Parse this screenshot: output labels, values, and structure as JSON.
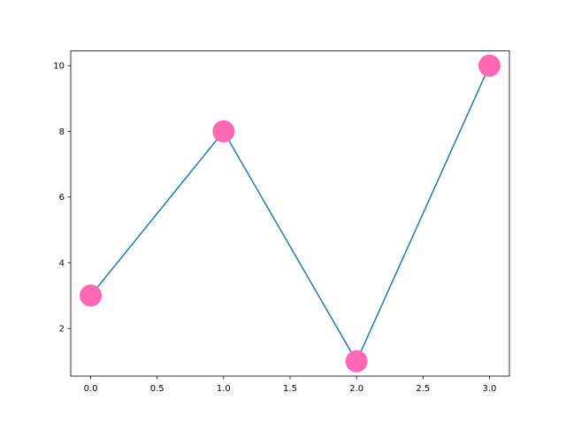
{
  "chart_data": {
    "type": "line",
    "title": "",
    "xlabel": "",
    "ylabel": "",
    "x": [
      0,
      1,
      2,
      3
    ],
    "series": [
      {
        "values": [
          3,
          8,
          1,
          10
        ],
        "line_color": "#1f77b4",
        "marker": "circle",
        "marker_color": "#ff69b4"
      }
    ],
    "xlim": [
      -0.15,
      3.15
    ],
    "ylim": [
      0.55,
      10.45
    ],
    "xticks": [
      "0.0",
      "0.5",
      "1.0",
      "1.5",
      "2.0",
      "2.5",
      "3.0"
    ],
    "yticks": [
      "2",
      "4",
      "6",
      "8",
      "10"
    ],
    "grid": false,
    "legend": "none"
  }
}
